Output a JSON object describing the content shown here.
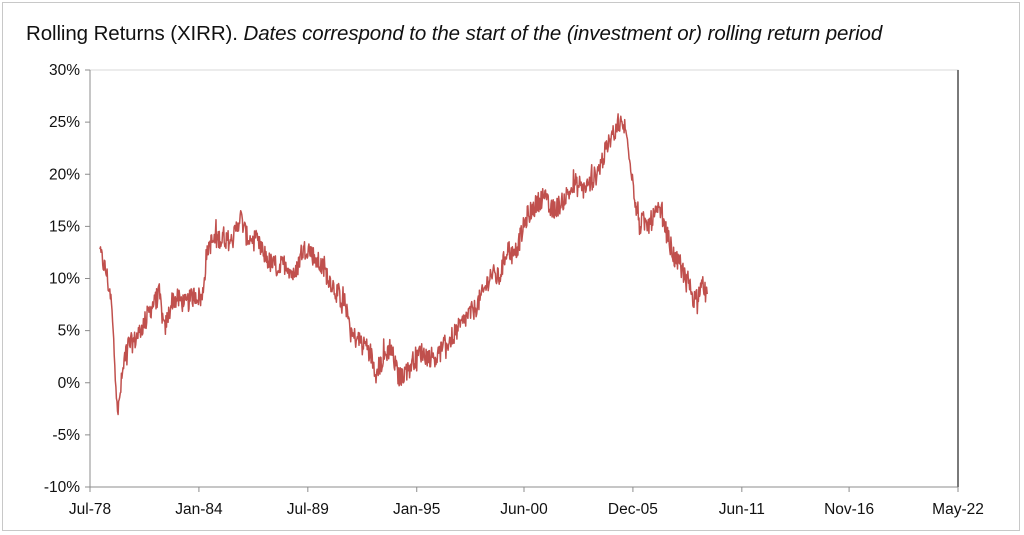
{
  "title": {
    "main": "Rolling Returns (XIRR).",
    "subtitle": "Dates correspond to the start of the (investment or) rolling return period"
  },
  "chart_data": {
    "type": "line",
    "title": "Rolling Returns (XIRR).",
    "subtitle": "Dates correspond to the start of the (investment or) rolling return period",
    "xlabel": "",
    "ylabel": "",
    "x_axis": {
      "type": "date",
      "range": [
        "1978-07",
        "2022-05"
      ],
      "tick_labels": [
        "Jul-78",
        "Jan-84",
        "Jul-89",
        "Jan-95",
        "Jun-00",
        "Dec-05",
        "Jun-11",
        "Nov-16",
        "May-22"
      ]
    },
    "y_axis": {
      "range": [
        -10,
        30
      ],
      "unit": "%",
      "tick_labels": [
        "-10%",
        "-5%",
        "0%",
        "5%",
        "10%",
        "15%",
        "20%",
        "25%",
        "30%"
      ]
    },
    "grid": false,
    "legend": "none",
    "series": [
      {
        "color": "#c0504d",
        "x": [
          "1979-01",
          "1979-05",
          "1979-08",
          "1979-10",
          "1979-12",
          "1980-02",
          "1980-05",
          "1980-10",
          "1981-03",
          "1981-09",
          "1982-01",
          "1982-04",
          "1982-09",
          "1983-01",
          "1983-05",
          "1983-11",
          "1984-03",
          "1984-06",
          "1984-09",
          "1985-03",
          "1985-09",
          "1986-02",
          "1986-06",
          "1986-12",
          "1987-04",
          "1987-08",
          "1988-01",
          "1988-06",
          "1988-11",
          "1989-03",
          "1989-07",
          "1989-11",
          "1990-04",
          "1990-08",
          "1991-01",
          "1991-06",
          "1991-10",
          "1992-03",
          "1992-08",
          "1992-12",
          "1993-04",
          "1993-09",
          "1994-02",
          "1994-06",
          "1994-10",
          "1995-03",
          "1995-08",
          "1996-01",
          "1996-06",
          "1996-11",
          "1997-04",
          "1997-08",
          "1997-12",
          "1998-05",
          "1998-10",
          "1999-03",
          "1999-08",
          "1999-12",
          "2000-04",
          "2000-08",
          "2001-01",
          "2001-06",
          "2001-10",
          "2002-03",
          "2002-08",
          "2003-01",
          "2003-05",
          "2003-09",
          "2004-02",
          "2004-07",
          "2004-11",
          "2005-03",
          "2005-07",
          "2005-10",
          "2006-01",
          "2006-04",
          "2006-06",
          "2006-09",
          "2007-01",
          "2007-05",
          "2007-09",
          "2008-01",
          "2008-05",
          "2008-09",
          "2009-01",
          "2009-05",
          "2009-09"
        ],
        "y": [
          12.5,
          10.5,
          7.5,
          2,
          -3,
          0,
          3.5,
          4,
          5.5,
          7.5,
          8.5,
          5,
          8,
          8,
          7.5,
          8.5,
          8,
          13,
          13.5,
          14,
          13.5,
          16,
          14,
          13.5,
          12.5,
          11.5,
          11,
          11.5,
          10,
          12.5,
          13,
          12,
          11,
          10,
          8.5,
          7.5,
          4.5,
          4,
          3.5,
          1,
          2,
          3.5,
          0.5,
          1,
          2,
          3,
          2.5,
          2.5,
          3.5,
          4.5,
          5.5,
          6.5,
          7,
          8.5,
          10.5,
          10,
          13,
          12,
          14,
          16,
          17,
          18,
          16.5,
          17,
          18,
          19,
          18.5,
          19,
          20,
          22,
          23.5,
          25,
          24.5,
          22,
          18,
          15,
          15.5,
          15,
          16,
          16.5,
          14,
          12,
          11,
          10,
          8,
          9,
          8.5
        ]
      }
    ]
  }
}
